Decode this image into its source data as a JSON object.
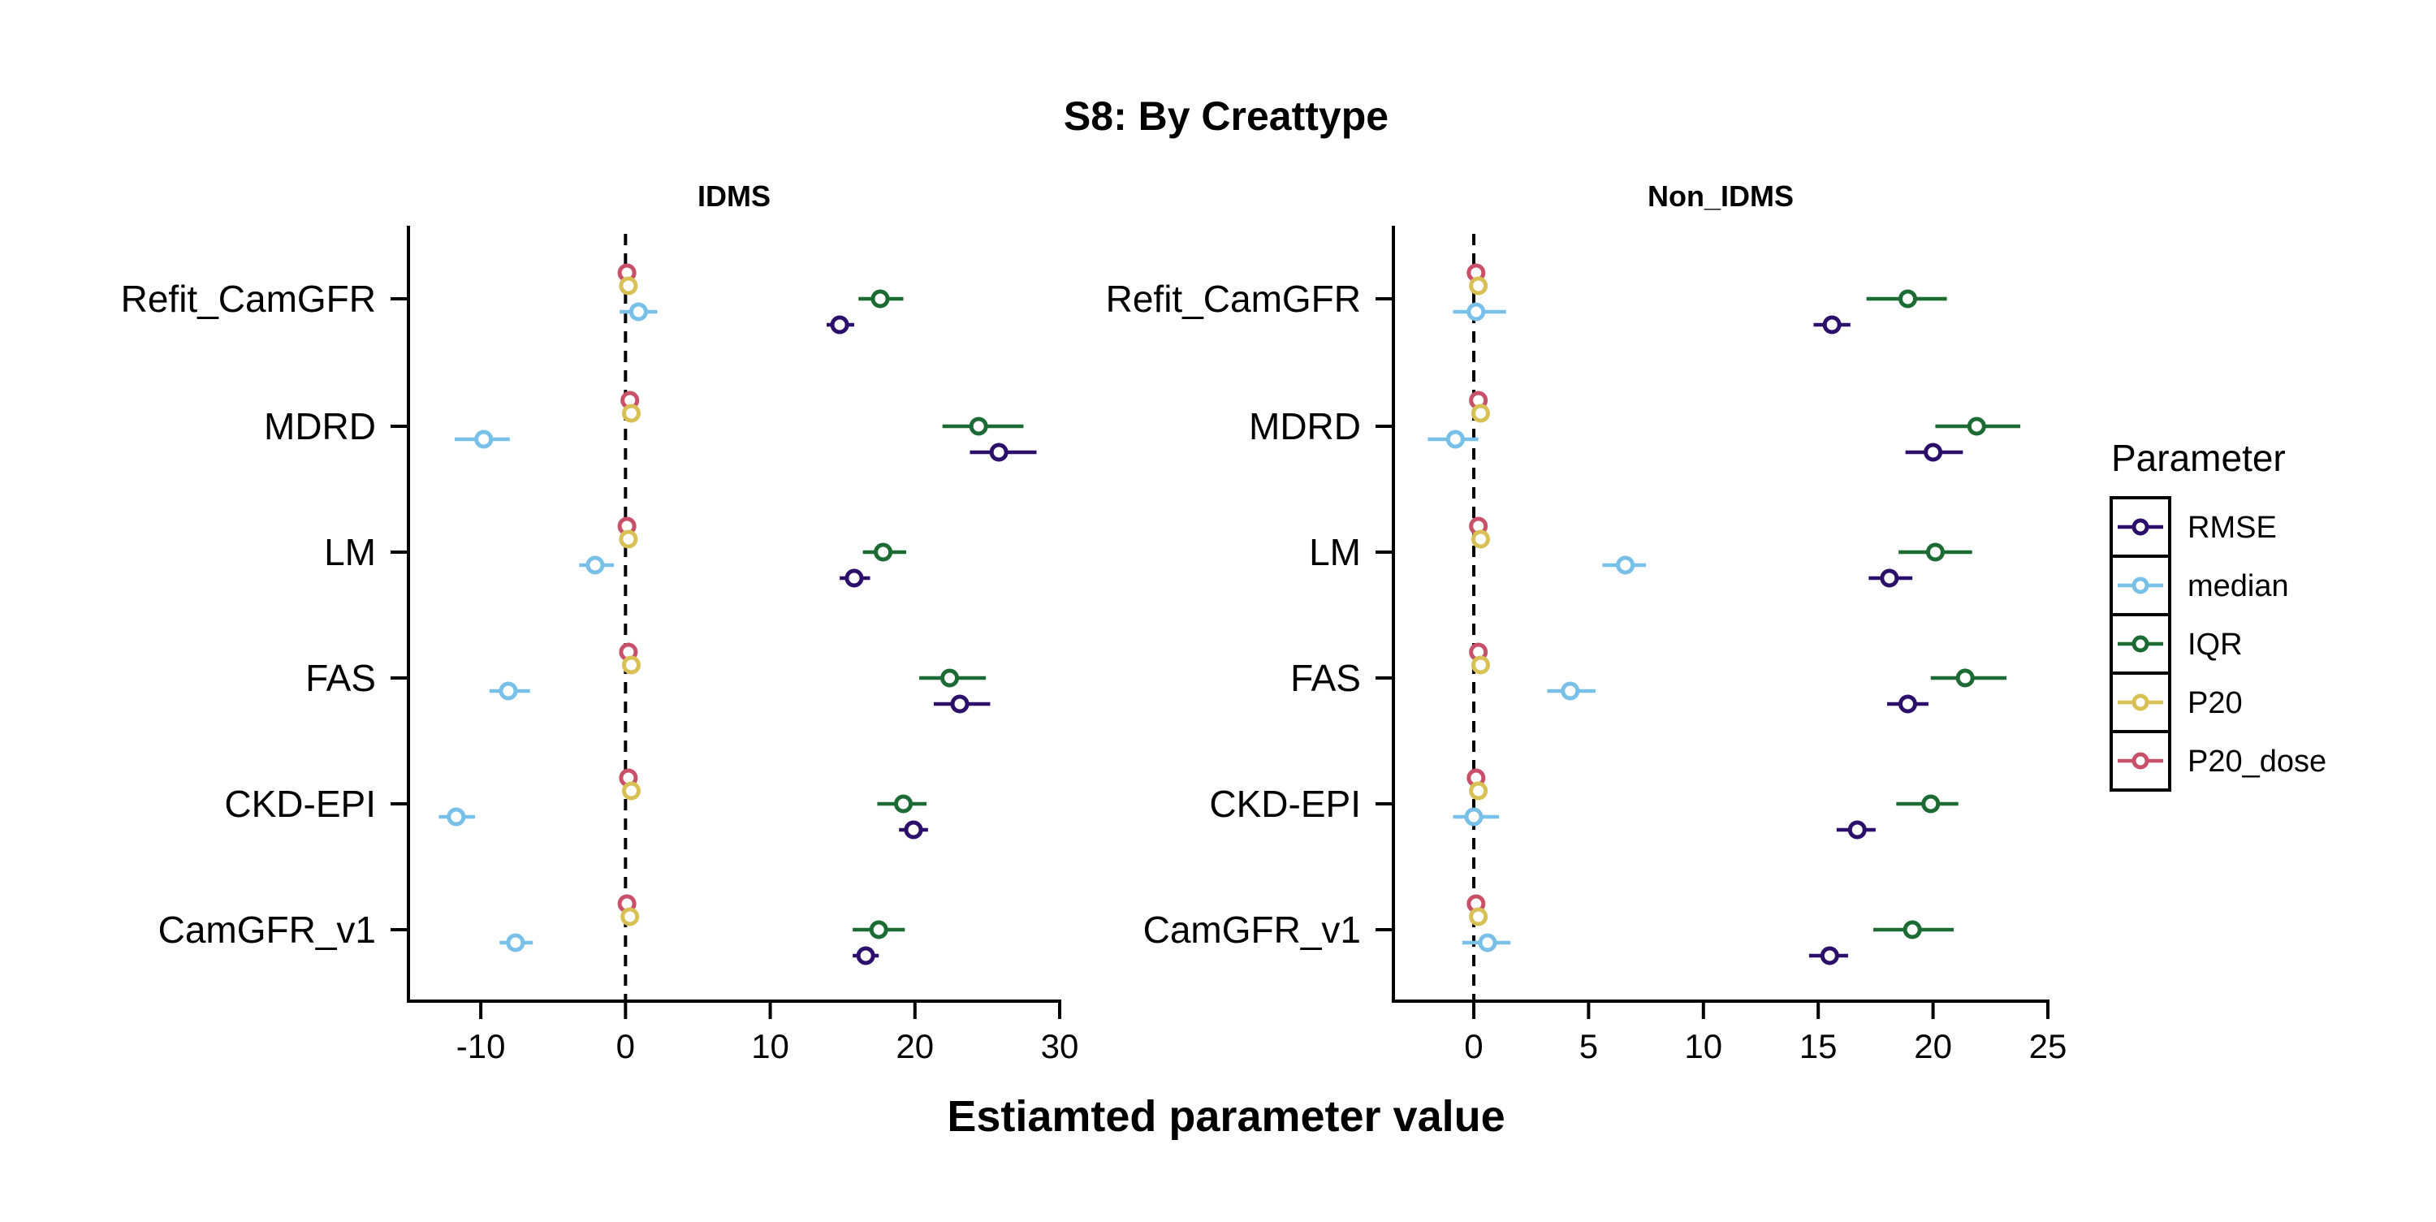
{
  "chart_data": {
    "type": "forest",
    "title": "S8: By Creattype",
    "xlabel": "Estiamted parameter value",
    "categories": [
      "Refit_CamGFR",
      "MDRD",
      "LM",
      "FAS",
      "CKD-EPI",
      "CamGFR_v1"
    ],
    "legend": {
      "title": "Parameter",
      "placement": "right",
      "series": [
        {
          "name": "RMSE",
          "color": "#2c0f6b"
        },
        {
          "name": "median",
          "color": "#78c0e8"
        },
        {
          "name": "IQR",
          "color": "#1c6b35"
        },
        {
          "name": "P20",
          "color": "#d8c055"
        },
        {
          "name": "P20_dose",
          "color": "#c85068"
        }
      ]
    },
    "reference_line": 0,
    "panels": [
      {
        "title": "IDMS",
        "xlim": [
          -15,
          30
        ],
        "xticks": [
          -10,
          0,
          10,
          20,
          30
        ],
        "xtick_labels": [
          "-10",
          "0",
          "10",
          "20",
          "30"
        ],
        "series": [
          {
            "name": "P20_dose",
            "points": [
              {
                "category": "Refit_CamGFR",
                "est": 0.1,
                "lo": 0.0,
                "hi": 0.2
              },
              {
                "category": "MDRD",
                "est": 0.3,
                "lo": 0.2,
                "hi": 0.4
              },
              {
                "category": "LM",
                "est": 0.1,
                "lo": 0.0,
                "hi": 0.2
              },
              {
                "category": "FAS",
                "est": 0.2,
                "lo": 0.1,
                "hi": 0.3
              },
              {
                "category": "CKD-EPI",
                "est": 0.2,
                "lo": 0.1,
                "hi": 0.3
              },
              {
                "category": "CamGFR_v1",
                "est": 0.1,
                "lo": 0.0,
                "hi": 0.2
              }
            ]
          },
          {
            "name": "P20",
            "points": [
              {
                "category": "Refit_CamGFR",
                "est": 0.2,
                "lo": 0.1,
                "hi": 0.3
              },
              {
                "category": "MDRD",
                "est": 0.4,
                "lo": 0.3,
                "hi": 0.5
              },
              {
                "category": "LM",
                "est": 0.2,
                "lo": 0.1,
                "hi": 0.3
              },
              {
                "category": "FAS",
                "est": 0.4,
                "lo": 0.3,
                "hi": 0.5
              },
              {
                "category": "CKD-EPI",
                "est": 0.4,
                "lo": 0.3,
                "hi": 0.5
              },
              {
                "category": "CamGFR_v1",
                "est": 0.3,
                "lo": 0.2,
                "hi": 0.4
              }
            ]
          },
          {
            "name": "median",
            "points": [
              {
                "category": "Refit_CamGFR",
                "est": 0.9,
                "lo": -0.4,
                "hi": 2.2
              },
              {
                "category": "MDRD",
                "est": -9.8,
                "lo": -11.8,
                "hi": -8.0
              },
              {
                "category": "LM",
                "est": -2.1,
                "lo": -3.2,
                "hi": -0.8
              },
              {
                "category": "FAS",
                "est": -8.1,
                "lo": -9.4,
                "hi": -6.6
              },
              {
                "category": "CKD-EPI",
                "est": -11.7,
                "lo": -12.9,
                "hi": -10.4
              },
              {
                "category": "CamGFR_v1",
                "est": -7.6,
                "lo": -8.7,
                "hi": -6.4
              }
            ]
          },
          {
            "name": "IQR",
            "points": [
              {
                "category": "Refit_CamGFR",
                "est": 17.6,
                "lo": 16.1,
                "hi": 19.2
              },
              {
                "category": "MDRD",
                "est": 24.4,
                "lo": 21.9,
                "hi": 27.5
              },
              {
                "category": "LM",
                "est": 17.8,
                "lo": 16.4,
                "hi": 19.4
              },
              {
                "category": "FAS",
                "est": 22.4,
                "lo": 20.3,
                "hi": 24.9
              },
              {
                "category": "CKD-EPI",
                "est": 19.2,
                "lo": 17.4,
                "hi": 20.8
              },
              {
                "category": "CamGFR_v1",
                "est": 17.5,
                "lo": 15.7,
                "hi": 19.3
              }
            ]
          },
          {
            "name": "RMSE",
            "points": [
              {
                "category": "Refit_CamGFR",
                "est": 14.8,
                "lo": 13.9,
                "hi": 15.8
              },
              {
                "category": "MDRD",
                "est": 25.8,
                "lo": 23.8,
                "hi": 28.4
              },
              {
                "category": "LM",
                "est": 15.8,
                "lo": 14.8,
                "hi": 16.9
              },
              {
                "category": "FAS",
                "est": 23.1,
                "lo": 21.3,
                "hi": 25.2
              },
              {
                "category": "CKD-EPI",
                "est": 19.9,
                "lo": 18.9,
                "hi": 20.9
              },
              {
                "category": "CamGFR_v1",
                "est": 16.6,
                "lo": 15.7,
                "hi": 17.5
              }
            ]
          }
        ]
      },
      {
        "title": "Non_IDMS",
        "xlim": [
          -3.5,
          25
        ],
        "xticks": [
          0,
          5,
          10,
          15,
          20,
          25
        ],
        "xtick_labels": [
          "0",
          "5",
          "10",
          "15",
          "20",
          "25"
        ],
        "series": [
          {
            "name": "P20_dose",
            "points": [
              {
                "category": "Refit_CamGFR",
                "est": 0.1,
                "lo": 0.0,
                "hi": 0.2
              },
              {
                "category": "MDRD",
                "est": 0.2,
                "lo": 0.1,
                "hi": 0.3
              },
              {
                "category": "LM",
                "est": 0.2,
                "lo": 0.1,
                "hi": 0.3
              },
              {
                "category": "FAS",
                "est": 0.2,
                "lo": 0.1,
                "hi": 0.3
              },
              {
                "category": "CKD-EPI",
                "est": 0.1,
                "lo": 0.0,
                "hi": 0.2
              },
              {
                "category": "CamGFR_v1",
                "est": 0.1,
                "lo": 0.0,
                "hi": 0.2
              }
            ]
          },
          {
            "name": "P20",
            "points": [
              {
                "category": "Refit_CamGFR",
                "est": 0.2,
                "lo": 0.1,
                "hi": 0.3
              },
              {
                "category": "MDRD",
                "est": 0.3,
                "lo": 0.2,
                "hi": 0.4
              },
              {
                "category": "LM",
                "est": 0.3,
                "lo": 0.2,
                "hi": 0.4
              },
              {
                "category": "FAS",
                "est": 0.3,
                "lo": 0.2,
                "hi": 0.4
              },
              {
                "category": "CKD-EPI",
                "est": 0.2,
                "lo": 0.1,
                "hi": 0.3
              },
              {
                "category": "CamGFR_v1",
                "est": 0.2,
                "lo": 0.1,
                "hi": 0.3
              }
            ]
          },
          {
            "name": "median",
            "points": [
              {
                "category": "Refit_CamGFR",
                "est": 0.1,
                "lo": -0.9,
                "hi": 1.4
              },
              {
                "category": "MDRD",
                "est": -0.8,
                "lo": -2.0,
                "hi": 0.2
              },
              {
                "category": "LM",
                "est": 6.6,
                "lo": 5.6,
                "hi": 7.5
              },
              {
                "category": "FAS",
                "est": 4.2,
                "lo": 3.2,
                "hi": 5.3
              },
              {
                "category": "CKD-EPI",
                "est": 0.0,
                "lo": -0.9,
                "hi": 1.1
              },
              {
                "category": "CamGFR_v1",
                "est": 0.6,
                "lo": -0.5,
                "hi": 1.6
              }
            ]
          },
          {
            "name": "IQR",
            "points": [
              {
                "category": "Refit_CamGFR",
                "est": 18.9,
                "lo": 17.1,
                "hi": 20.6
              },
              {
                "category": "MDRD",
                "est": 21.9,
                "lo": 20.1,
                "hi": 23.8
              },
              {
                "category": "LM",
                "est": 20.1,
                "lo": 18.5,
                "hi": 21.7
              },
              {
                "category": "FAS",
                "est": 21.4,
                "lo": 19.9,
                "hi": 23.2
              },
              {
                "category": "CKD-EPI",
                "est": 19.9,
                "lo": 18.4,
                "hi": 21.1
              },
              {
                "category": "CamGFR_v1",
                "est": 19.1,
                "lo": 17.4,
                "hi": 20.9
              }
            ]
          },
          {
            "name": "RMSE",
            "points": [
              {
                "category": "Refit_CamGFR",
                "est": 15.6,
                "lo": 14.8,
                "hi": 16.4
              },
              {
                "category": "MDRD",
                "est": 20.0,
                "lo": 18.8,
                "hi": 21.3
              },
              {
                "category": "LM",
                "est": 18.1,
                "lo": 17.2,
                "hi": 19.1
              },
              {
                "category": "FAS",
                "est": 18.9,
                "lo": 18.0,
                "hi": 19.8
              },
              {
                "category": "CKD-EPI",
                "est": 16.7,
                "lo": 15.8,
                "hi": 17.5
              },
              {
                "category": "CamGFR_v1",
                "est": 15.5,
                "lo": 14.6,
                "hi": 16.3
              }
            ]
          }
        ]
      }
    ]
  }
}
